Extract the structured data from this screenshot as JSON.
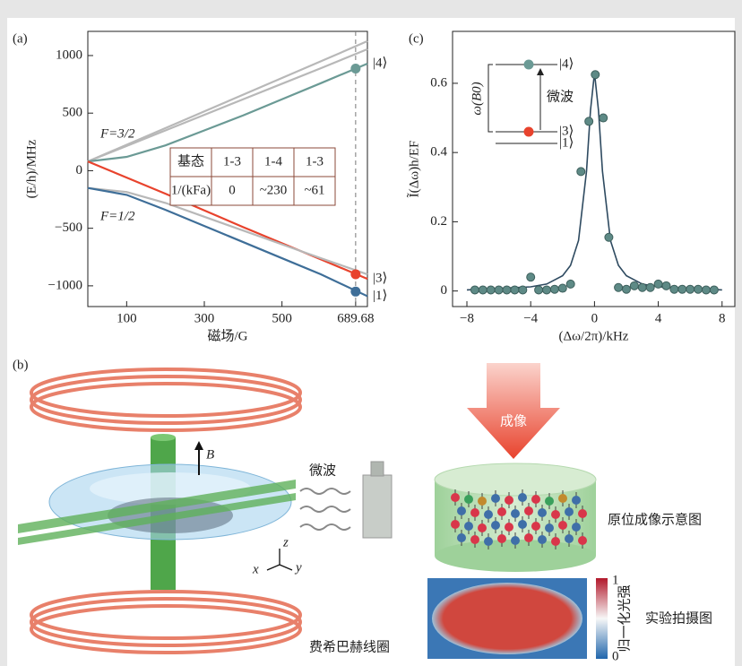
{
  "panels": [
    "(a)",
    "(b)",
    "(c)"
  ],
  "chart_data": [
    {
      "type": "line",
      "x_label": "磁场/G",
      "y_label": "(E/h)/MHz",
      "x": [
        0,
        100,
        200,
        300,
        400,
        500,
        600,
        720
      ],
      "series": [
        {
          "color": "#b8b8b8",
          "values": [
            80,
            225,
            370,
            515,
            660,
            805,
            950,
            1125
          ]
        },
        {
          "color": "#b8b8b8",
          "values": [
            80,
            215,
            350,
            485,
            620,
            755,
            890,
            1055
          ]
        },
        {
          "name": "|4⟩",
          "color": "#6b9a95",
          "values": [
            80,
            120,
            220,
            350,
            480,
            620,
            760,
            930
          ]
        },
        {
          "name": "|3⟩",
          "color": "#e8432d",
          "values": [
            80,
            -60,
            -200,
            -345,
            -490,
            -630,
            -770,
            -940
          ]
        },
        {
          "color": "#b8b8b8",
          "values": [
            -150,
            -185,
            -280,
            -400,
            -520,
            -640,
            -760,
            -900
          ]
        },
        {
          "name": "|1⟩",
          "color": "#3e6e98",
          "values": [
            -150,
            -210,
            -340,
            -480,
            -620,
            -760,
            -900,
            -1090
          ]
        }
      ],
      "annotations": [
        "F=3/2",
        "F=1/2"
      ],
      "marker_x": 689.68,
      "markers": [
        {
          "color": "#6b9a95",
          "value": 887
        },
        {
          "color": "#e8432d",
          "value": -900
        },
        {
          "color": "#3e6e98",
          "value": -1050
        }
      ],
      "xlim": [
        0,
        720
      ],
      "ylim": [
        -1180,
        1210
      ],
      "xticks": [
        100,
        300,
        500,
        689.68
      ],
      "yticks": [
        {
          "value": -1000,
          "label": "−1000"
        },
        {
          "value": -500,
          "label": "−500"
        },
        0,
        500,
        1000
      ],
      "table": {
        "rows": [
          [
            "基态",
            "1-3",
            "1-4",
            "1-3"
          ],
          [
            "1/(kFa)",
            "0",
            "~230",
            "~61"
          ]
        ]
      }
    },
    {
      "type": "scatter",
      "x_label": "(Δω/2π)/kHz",
      "y_label": "Ĩ(Δω)h/EF",
      "x": [
        -7.5,
        -7,
        -6.5,
        -6,
        -5.5,
        -5,
        -4.5,
        -4,
        -3.5,
        -3,
        -2.5,
        -2,
        -1.5,
        -0.85,
        -0.35,
        0.05,
        0.55,
        0.9,
        1.5,
        2,
        2.5,
        3,
        3.5,
        4,
        4.5,
        5,
        5.5,
        6,
        6.5,
        7,
        7.5
      ],
      "values": [
        0.003,
        0.003,
        0.003,
        0.003,
        0.003,
        0.003,
        0.003,
        0.04,
        0.003,
        0.003,
        0.005,
        0.008,
        0.02,
        0.345,
        0.49,
        0.625,
        0.5,
        0.155,
        0.01,
        0.005,
        0.015,
        0.01,
        0.01,
        0.02,
        0.015,
        0.005,
        0.005,
        0.005,
        0.005,
        0.003,
        0.003
      ],
      "color": "#5e8a86",
      "fit": {
        "color": "#2e4a60",
        "x": [
          -8,
          -4,
          -3,
          -2,
          -1.5,
          -1,
          -0.5,
          -0.25,
          0,
          0.25,
          0.5,
          1,
          1.5,
          2,
          3,
          4,
          8
        ],
        "values": [
          0.003,
          0.012,
          0.02,
          0.044,
          0.074,
          0.146,
          0.346,
          0.522,
          0.63,
          0.522,
          0.346,
          0.146,
          0.074,
          0.044,
          0.02,
          0.012,
          0.003
        ]
      },
      "xlim": [
        -8.9,
        8.8
      ],
      "ylim": [
        -0.045,
        0.75
      ],
      "xticks": [
        {
          "value": -8,
          "label": "−8"
        },
        {
          "value": -4,
          "label": "−4"
        },
        0,
        4,
        8
      ],
      "yticks": [
        0,
        0.2,
        0.4,
        0.6
      ],
      "inset": {
        "levels": [
          "|4⟩",
          "|3⟩",
          "|1⟩"
        ],
        "transition": "微波",
        "energy": "ω(B0)"
      }
    }
  ],
  "diagram": {
    "field": "B",
    "microwave": "微波",
    "axes": [
      "z",
      "x",
      "y"
    ],
    "coil": "费希巴赫线圈",
    "imaging": "成像",
    "schematic": "原位成像示意图",
    "photo": "实验拍摄图",
    "colorbar": {
      "max": "1",
      "min": "0",
      "label": "归一化光强"
    }
  }
}
